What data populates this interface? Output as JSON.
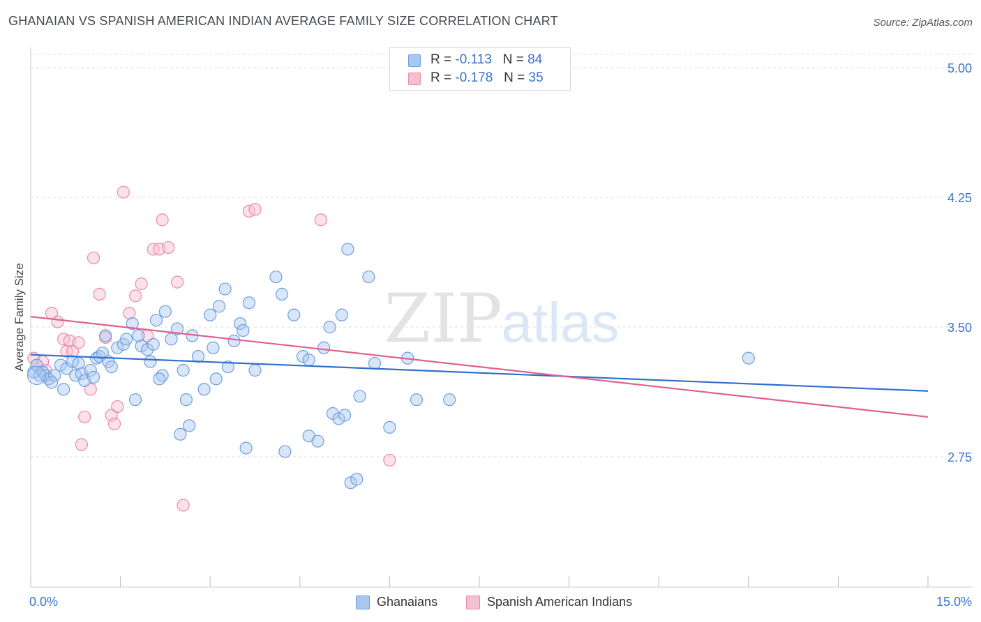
{
  "title": "GHANAIAN VS SPANISH AMERICAN INDIAN AVERAGE FAMILY SIZE CORRELATION CHART",
  "source": "Source: ZipAtlas.com",
  "watermark": {
    "zip": "ZIP",
    "atlas": "atlas"
  },
  "colors": {
    "blue_fill": "#a9c8ef",
    "blue_stroke": "#6d9fe0",
    "blue_line": "#2f6fcc",
    "pink_fill": "#f6bfd0",
    "pink_stroke": "#ea8aaa",
    "pink_line": "#e0608e",
    "axis_text": "#3a73c9",
    "grid": "#dddddd"
  },
  "legend_top": {
    "rows": [
      {
        "r_label": "R =",
        "r_value": "-0.113",
        "n_label": "N =",
        "n_value": "84",
        "color": "blue"
      },
      {
        "r_label": "R =",
        "r_value": "-0.178",
        "n_label": "N =",
        "n_value": "35",
        "color": "pink"
      }
    ]
  },
  "legend_bottom": [
    "Ghanaians",
    "Spanish American Indians"
  ],
  "chart_data": {
    "type": "scatter",
    "ylabel": "Average Family Size",
    "xlim": [
      0,
      15
    ],
    "ylim": [
      2.0,
      5.1
    ],
    "x_tick_labels": {
      "min": "0.0%",
      "max": "15.0%"
    },
    "y_ticks": [
      2.75,
      3.5,
      4.25,
      5.0
    ],
    "y_tick_labels": [
      "2.75",
      "3.50",
      "4.25",
      "5.00"
    ],
    "grid": "horizontal dashed",
    "legend_placement": "top-center and bottom",
    "series": [
      {
        "name": "Ghanaians",
        "color": "blue",
        "r": -0.113,
        "n": 84,
        "trend": {
          "x": [
            0,
            15
          ],
          "y": [
            3.34,
            3.13
          ]
        },
        "points": [
          [
            0.05,
            3.24
          ],
          [
            0.1,
            3.28
          ],
          [
            0.15,
            3.22
          ],
          [
            0.2,
            3.24
          ],
          [
            0.25,
            3.22
          ],
          [
            0.3,
            3.2
          ],
          [
            0.5,
            3.28
          ],
          [
            0.55,
            3.14
          ],
          [
            0.6,
            3.26
          ],
          [
            0.7,
            3.3
          ],
          [
            0.75,
            3.22
          ],
          [
            0.8,
            3.29
          ],
          [
            0.85,
            3.23
          ],
          [
            0.9,
            3.19
          ],
          [
            1.0,
            3.25
          ],
          [
            1.05,
            3.21
          ],
          [
            1.1,
            3.32
          ],
          [
            1.15,
            3.33
          ],
          [
            1.2,
            3.35
          ],
          [
            1.25,
            3.45
          ],
          [
            1.3,
            3.3
          ],
          [
            1.35,
            3.27
          ],
          [
            1.45,
            3.38
          ],
          [
            1.55,
            3.4
          ],
          [
            1.6,
            3.43
          ],
          [
            1.7,
            3.52
          ],
          [
            1.8,
            3.45
          ],
          [
            1.85,
            3.39
          ],
          [
            1.95,
            3.37
          ],
          [
            2.0,
            3.3
          ],
          [
            2.05,
            3.4
          ],
          [
            2.1,
            3.54
          ],
          [
            2.2,
            3.22
          ],
          [
            2.25,
            3.59
          ],
          [
            2.35,
            3.43
          ],
          [
            2.45,
            3.49
          ],
          [
            2.55,
            3.25
          ],
          [
            2.6,
            3.08
          ],
          [
            2.7,
            3.45
          ],
          [
            2.8,
            3.33
          ],
          [
            2.9,
            3.14
          ],
          [
            3.0,
            3.57
          ],
          [
            3.05,
            3.38
          ],
          [
            3.15,
            3.62
          ],
          [
            3.25,
            3.72
          ],
          [
            3.3,
            3.27
          ],
          [
            3.4,
            3.42
          ],
          [
            3.5,
            3.52
          ],
          [
            3.55,
            3.48
          ],
          [
            3.65,
            3.64
          ],
          [
            3.75,
            3.25
          ],
          [
            4.1,
            3.79
          ],
          [
            4.2,
            3.69
          ],
          [
            4.4,
            3.57
          ],
          [
            4.55,
            3.33
          ],
          [
            4.65,
            3.31
          ],
          [
            4.9,
            3.38
          ],
          [
            5.0,
            3.5
          ],
          [
            5.2,
            3.57
          ],
          [
            5.3,
            3.95
          ],
          [
            5.65,
            3.79
          ],
          [
            5.75,
            3.29
          ],
          [
            6.3,
            3.32
          ],
          [
            6.45,
            3.08
          ],
          [
            7.0,
            3.08
          ],
          [
            1.75,
            3.08
          ],
          [
            2.65,
            2.93
          ],
          [
            2.5,
            2.88
          ],
          [
            3.6,
            2.8
          ],
          [
            4.25,
            2.78
          ],
          [
            4.65,
            2.87
          ],
          [
            4.8,
            2.84
          ],
          [
            5.05,
            3.0
          ],
          [
            5.15,
            2.97
          ],
          [
            5.25,
            2.99
          ],
          [
            5.35,
            2.6
          ],
          [
            5.45,
            2.62
          ],
          [
            6.0,
            2.92
          ],
          [
            5.5,
            3.1
          ],
          [
            12.0,
            3.32
          ],
          [
            3.1,
            3.2
          ],
          [
            2.15,
            3.2
          ],
          [
            0.4,
            3.22
          ],
          [
            0.35,
            3.18
          ]
        ]
      },
      {
        "name": "Spanish American Indians",
        "color": "pink",
        "r": -0.178,
        "n": 35,
        "trend": {
          "x": [
            0,
            15
          ],
          "y": [
            3.56,
            2.98
          ]
        },
        "points": [
          [
            0.05,
            3.32
          ],
          [
            0.1,
            3.28
          ],
          [
            0.2,
            3.3
          ],
          [
            0.25,
            3.25
          ],
          [
            0.35,
            3.58
          ],
          [
            0.45,
            3.53
          ],
          [
            0.55,
            3.43
          ],
          [
            0.6,
            3.36
          ],
          [
            0.65,
            3.42
          ],
          [
            0.7,
            3.36
          ],
          [
            0.8,
            3.41
          ],
          [
            0.85,
            2.82
          ],
          [
            0.9,
            2.98
          ],
          [
            1.0,
            3.14
          ],
          [
            1.05,
            3.9
          ],
          [
            1.15,
            3.69
          ],
          [
            1.25,
            3.44
          ],
          [
            1.35,
            2.99
          ],
          [
            1.4,
            2.94
          ],
          [
            1.45,
            3.04
          ],
          [
            1.55,
            4.28
          ],
          [
            1.65,
            3.58
          ],
          [
            1.75,
            3.68
          ],
          [
            1.85,
            3.75
          ],
          [
            1.95,
            3.45
          ],
          [
            2.05,
            3.95
          ],
          [
            2.15,
            3.95
          ],
          [
            2.2,
            4.12
          ],
          [
            2.3,
            3.96
          ],
          [
            2.45,
            3.76
          ],
          [
            2.55,
            2.47
          ],
          [
            3.65,
            4.17
          ],
          [
            3.75,
            4.18
          ],
          [
            4.85,
            4.12
          ],
          [
            6.0,
            2.73
          ]
        ]
      }
    ]
  }
}
